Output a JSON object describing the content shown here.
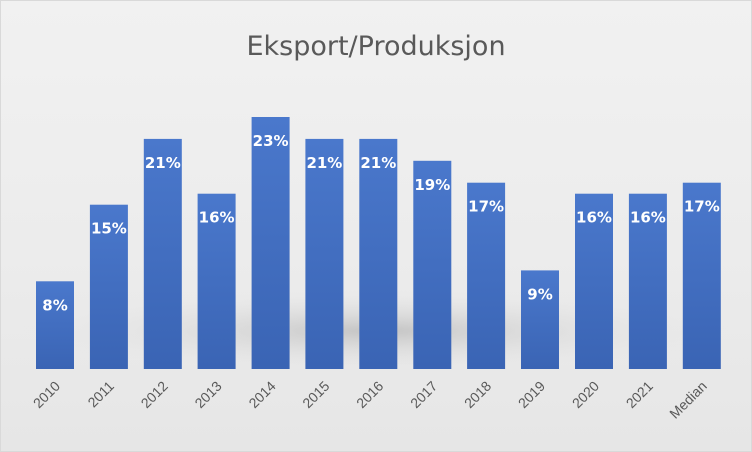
{
  "chart_data": {
    "type": "bar",
    "title": "Eksport/Produksjon",
    "xlabel": "",
    "ylabel": "",
    "categories": [
      "2010",
      "2011",
      "2012",
      "2013",
      "2014",
      "2015",
      "2016",
      "2017",
      "2018",
      "2019",
      "2020",
      "2021",
      "Median"
    ],
    "values": [
      8,
      15,
      21,
      16,
      23,
      21,
      21,
      19,
      17,
      9,
      16,
      16,
      17
    ],
    "data_labels": [
      "8%",
      "15%",
      "21%",
      "16%",
      "23%",
      "21%",
      "21%",
      "19%",
      "17%",
      "9%",
      "16%",
      "16%",
      "17%"
    ],
    "value_unit": "%",
    "ylim": [
      0,
      23
    ],
    "grid": false,
    "legend": "none",
    "bar_color": "#4472c4"
  }
}
